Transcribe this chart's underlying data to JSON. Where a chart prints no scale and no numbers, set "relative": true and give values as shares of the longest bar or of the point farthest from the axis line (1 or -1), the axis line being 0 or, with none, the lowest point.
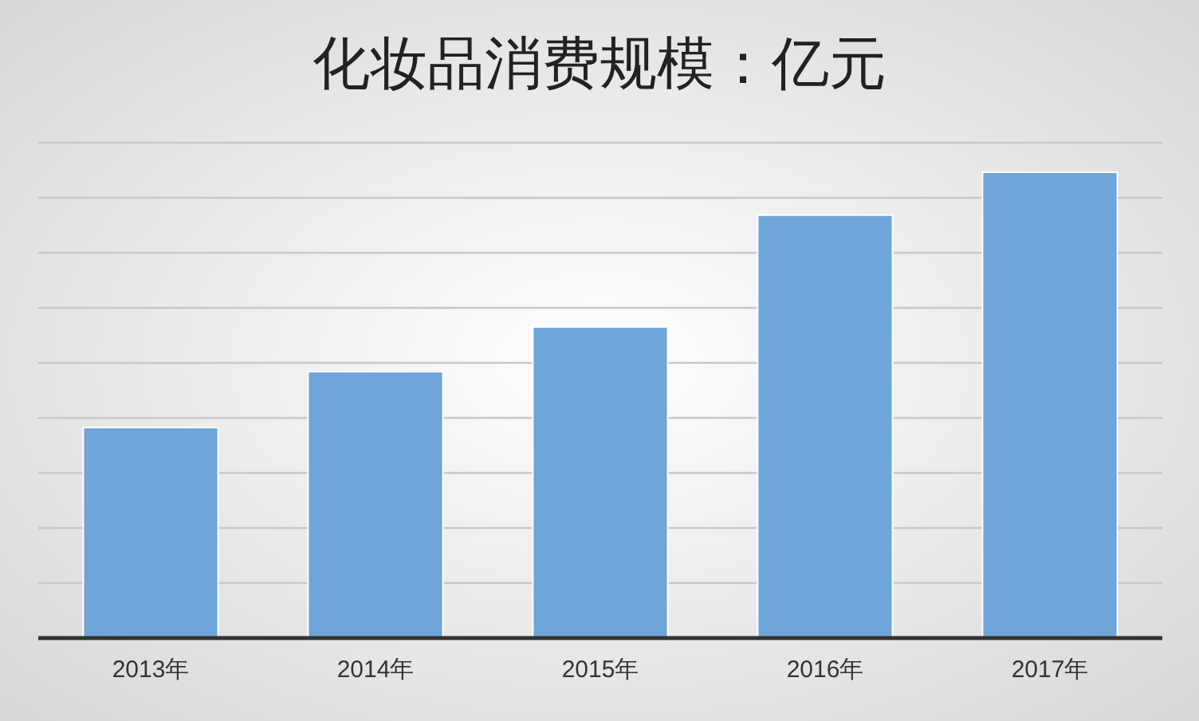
{
  "chart_data": {
    "type": "bar",
    "title": "化妆品消费规模：亿元",
    "categories": [
      "2013年",
      "2014年",
      "2015年",
      "2016年",
      "2017年"
    ],
    "values": [
      0.452,
      0.572,
      0.668,
      0.908,
      1
    ],
    "color": "#6fa6d9",
    "relative": true,
    "grid": "y"
  }
}
